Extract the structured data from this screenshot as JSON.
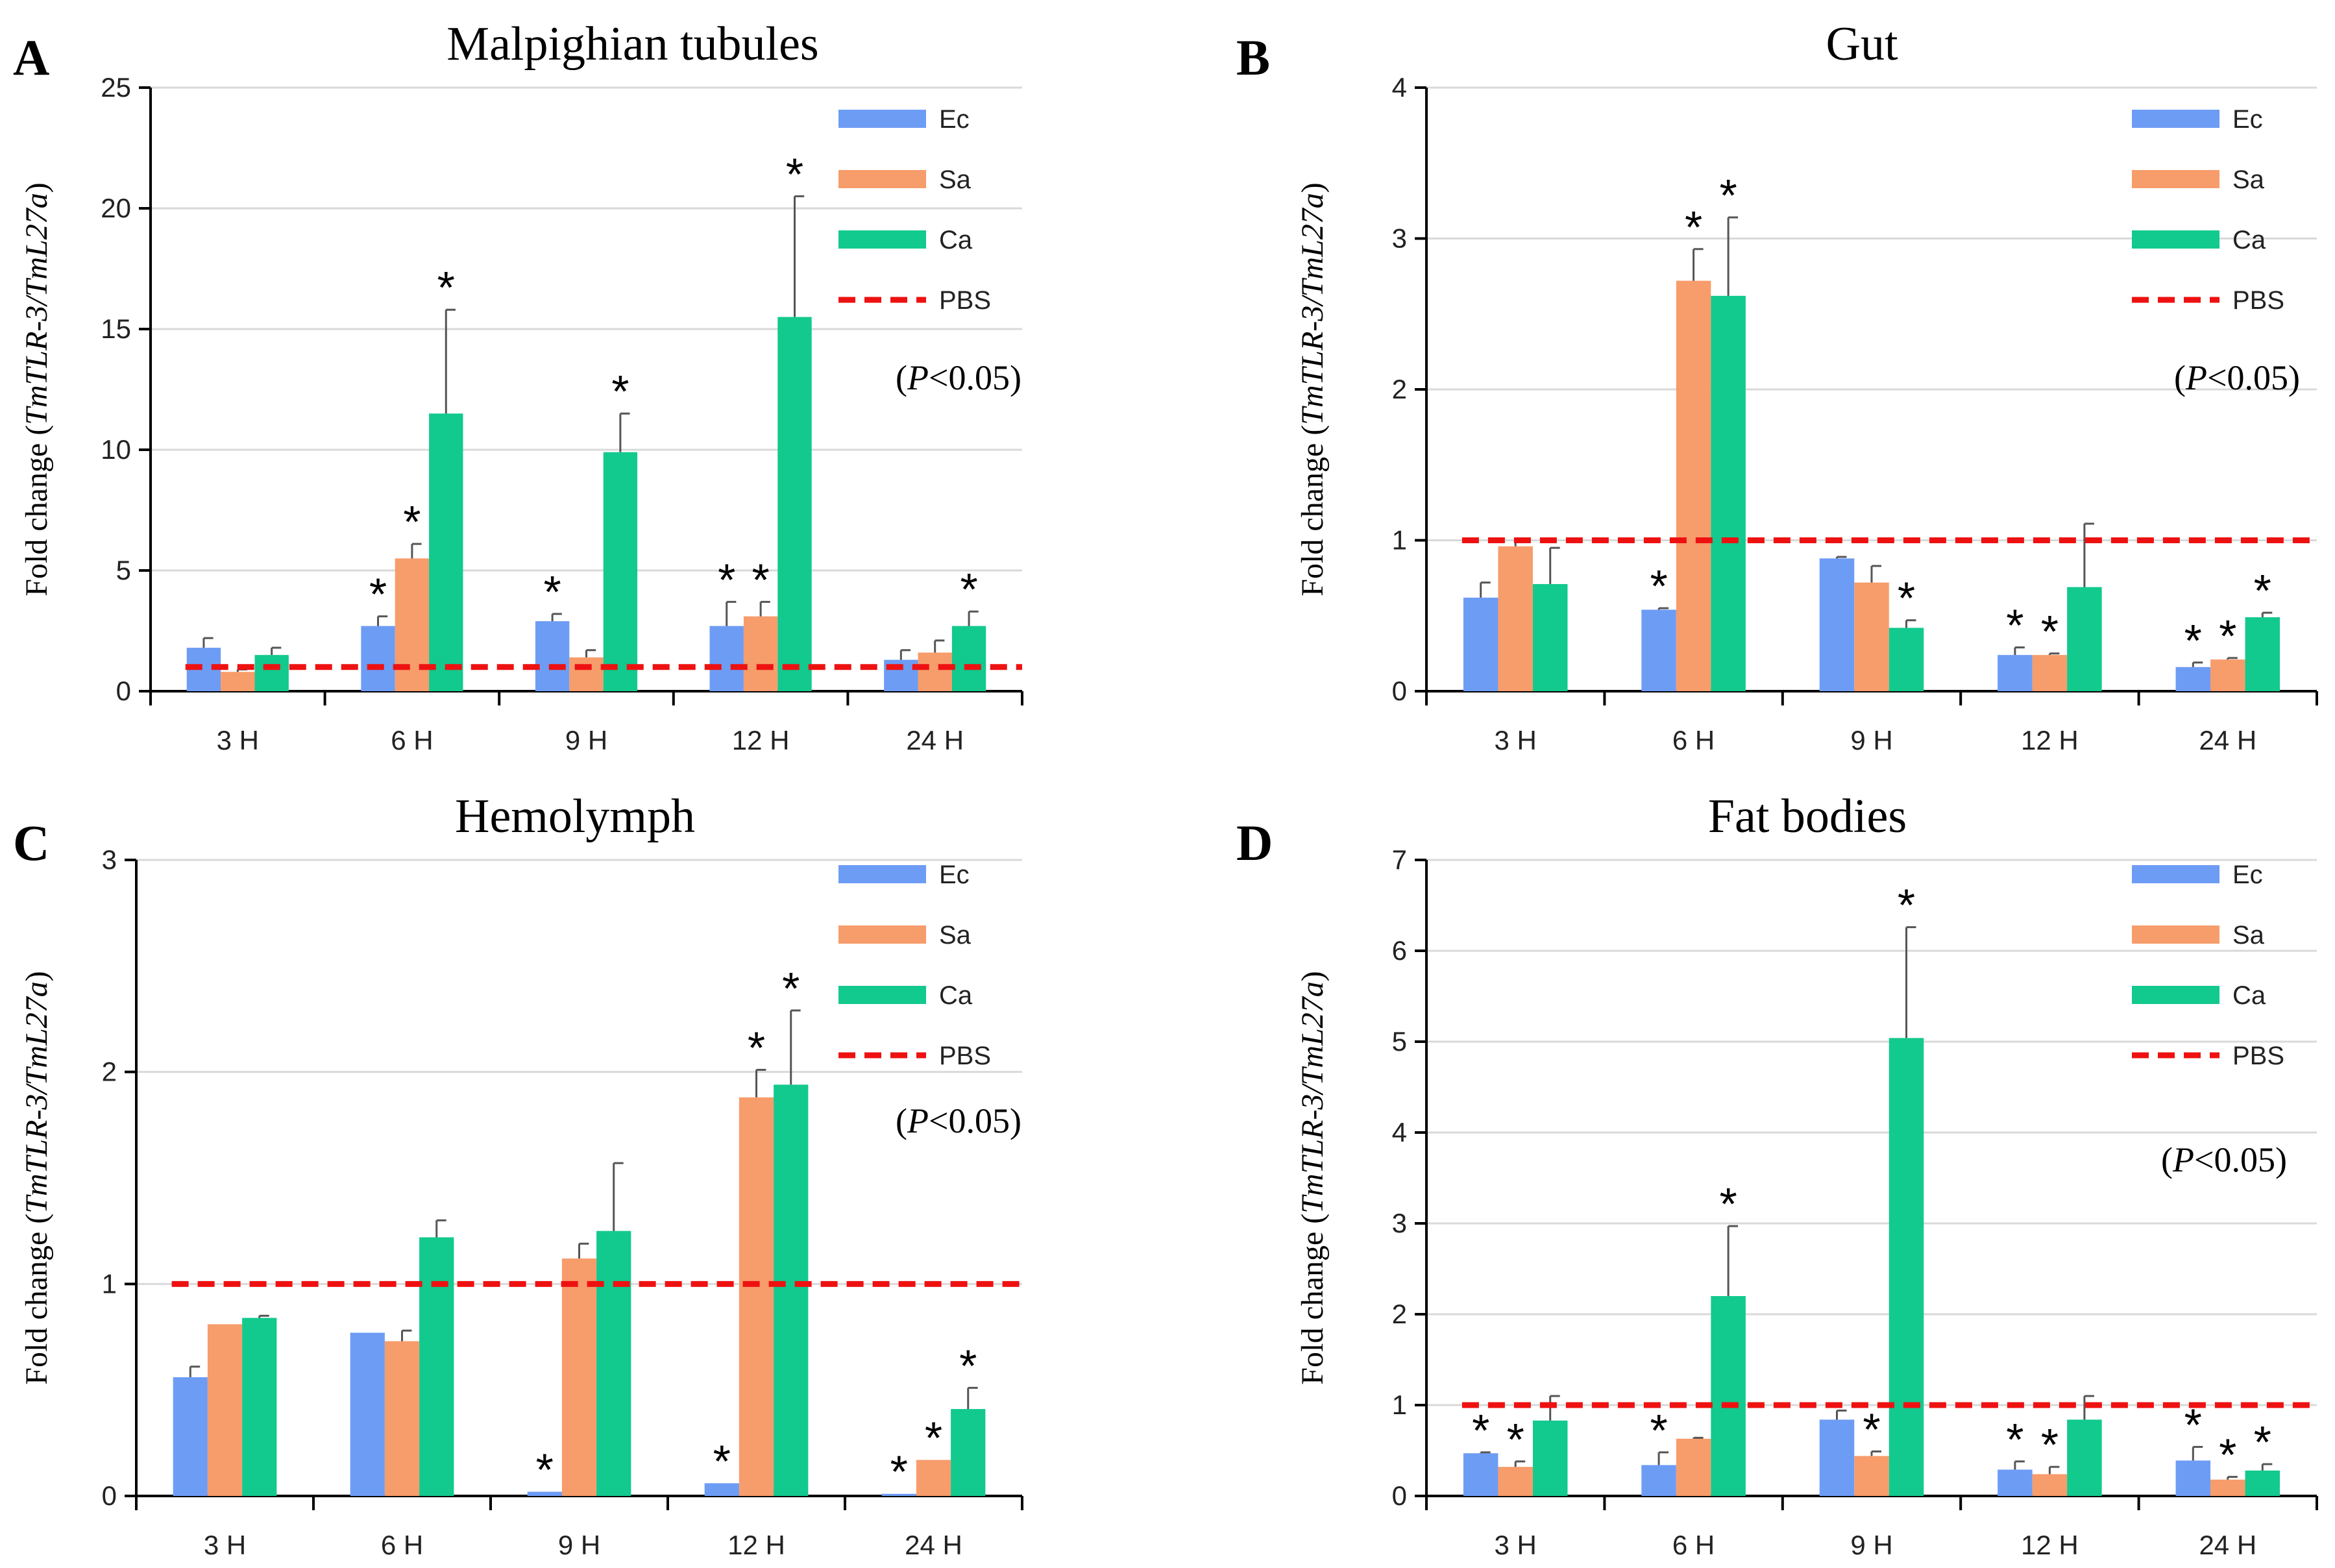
{
  "colors": {
    "Ec": "#6d9cf5",
    "Sa": "#f79c6b",
    "Ca": "#12c98e",
    "PBS": "#ee1111",
    "axis": "#000000",
    "grid": "#d9d9d9",
    "error": "#555555"
  },
  "chart_data": [
    {
      "type": "bar",
      "panel_label": "A",
      "title": "Malpighian tubules",
      "ylabel_prefix": "Fold change (",
      "ylabel_gene": "TmTLR-3/TmL27a",
      "ylabel_suffix": ")",
      "ylim": [
        0,
        25
      ],
      "yticks": [
        0,
        5,
        10,
        15,
        20,
        25
      ],
      "categories": [
        "3 H",
        "6 H",
        "9 H",
        "12 H",
        "24 H"
      ],
      "series": [
        {
          "name": "Ec",
          "values": [
            1.8,
            2.7,
            2.9,
            2.7,
            1.3
          ],
          "errors": [
            0.4,
            0.4,
            0.3,
            1.0,
            0.4
          ],
          "sig": [
            false,
            true,
            true,
            true,
            false
          ]
        },
        {
          "name": "Sa",
          "values": [
            0.8,
            5.5,
            1.4,
            3.1,
            1.6
          ],
          "errors": [
            0.1,
            0.6,
            0.3,
            0.6,
            0.5
          ],
          "sig": [
            false,
            true,
            false,
            true,
            false
          ]
        },
        {
          "name": "Ca",
          "values": [
            1.5,
            11.5,
            9.9,
            15.5,
            2.7
          ],
          "errors": [
            0.3,
            4.3,
            1.6,
            5.0,
            0.6
          ],
          "sig": [
            false,
            true,
            true,
            true,
            true
          ]
        }
      ],
      "reference": {
        "name": "PBS",
        "value": 1
      },
      "significance_marker": "*",
      "annotation": {
        "P": "P",
        "text": "<0.05"
      }
    },
    {
      "type": "bar",
      "panel_label": "B",
      "title": "Gut",
      "ylabel_prefix": "Fold change (",
      "ylabel_gene": "TmTLR-3/TmL27a",
      "ylabel_suffix": ")",
      "ylim": [
        0,
        4
      ],
      "yticks": [
        0,
        1,
        2,
        3,
        4
      ],
      "categories": [
        "3 H",
        "6 H",
        "9 H",
        "12 H",
        "24 H"
      ],
      "series": [
        {
          "name": "Ec",
          "values": [
            0.62,
            0.54,
            0.88,
            0.24,
            0.16
          ],
          "errors": [
            0.1,
            0.01,
            0.01,
            0.05,
            0.03
          ],
          "sig": [
            false,
            true,
            false,
            true,
            true
          ]
        },
        {
          "name": "Sa",
          "values": [
            0.96,
            2.72,
            0.72,
            0.24,
            0.21
          ],
          "errors": [
            0.04,
            0.21,
            0.11,
            0.01,
            0.01
          ],
          "sig": [
            false,
            true,
            false,
            true,
            true
          ]
        },
        {
          "name": "Ca",
          "values": [
            0.71,
            2.62,
            0.42,
            0.69,
            0.49
          ],
          "errors": [
            0.24,
            0.52,
            0.05,
            0.42,
            0.03
          ],
          "sig": [
            false,
            true,
            true,
            false,
            true
          ]
        }
      ],
      "reference": {
        "name": "PBS",
        "value": 1
      },
      "significance_marker": "*",
      "annotation": {
        "P": "P",
        "text": "<0.05"
      }
    },
    {
      "type": "bar",
      "panel_label": "C",
      "title": "Hemolymph",
      "ylabel_prefix": "Fold change (",
      "ylabel_gene": "TmTLR-3/TmL27a",
      "ylabel_suffix": ")",
      "ylim": [
        0,
        3
      ],
      "yticks": [
        0,
        1,
        2,
        3
      ],
      "categories": [
        "3 H",
        "6 H",
        "9 H",
        "12 H",
        "24 H"
      ],
      "series": [
        {
          "name": "Ec",
          "values": [
            0.56,
            0.77,
            0.02,
            0.06,
            0.01
          ],
          "errors": [
            0.05,
            0.0,
            0.0,
            0.0,
            0.0
          ],
          "sig": [
            false,
            false,
            true,
            true,
            true
          ]
        },
        {
          "name": "Sa",
          "values": [
            0.81,
            0.73,
            1.12,
            1.88,
            0.17
          ],
          "errors": [
            0.0,
            0.05,
            0.07,
            0.13,
            0.0
          ],
          "sig": [
            false,
            false,
            false,
            true,
            true
          ]
        },
        {
          "name": "Ca",
          "values": [
            0.84,
            1.22,
            1.25,
            1.94,
            0.41
          ],
          "errors": [
            0.01,
            0.08,
            0.32,
            0.35,
            0.1
          ],
          "sig": [
            false,
            false,
            false,
            true,
            true
          ]
        }
      ],
      "reference": {
        "name": "PBS",
        "value": 1
      },
      "significance_marker": "*",
      "annotation": {
        "P": "P",
        "text": "<0.05"
      }
    },
    {
      "type": "bar",
      "panel_label": "D",
      "title": "Fat bodies",
      "ylabel_prefix": "Fold change (",
      "ylabel_gene": "TmTLR-3/TmL27a",
      "ylabel_suffix": ")",
      "ylim": [
        0,
        7
      ],
      "yticks": [
        0,
        1,
        2,
        3,
        4,
        5,
        6,
        7
      ],
      "categories": [
        "3 H",
        "6 H",
        "9 H",
        "12 H",
        "24 H"
      ],
      "series": [
        {
          "name": "Ec",
          "values": [
            0.47,
            0.34,
            0.84,
            0.29,
            0.39
          ],
          "errors": [
            0.01,
            0.14,
            0.1,
            0.09,
            0.15
          ],
          "sig": [
            true,
            true,
            false,
            true,
            true
          ]
        },
        {
          "name": "Sa",
          "values": [
            0.32,
            0.63,
            0.44,
            0.24,
            0.18
          ],
          "errors": [
            0.06,
            0.01,
            0.05,
            0.08,
            0.03
          ],
          "sig": [
            true,
            false,
            true,
            true,
            true
          ]
        },
        {
          "name": "Ca",
          "values": [
            0.83,
            2.2,
            5.04,
            0.84,
            0.28
          ],
          "errors": [
            0.27,
            0.77,
            1.22,
            0.26,
            0.07
          ],
          "sig": [
            false,
            true,
            true,
            false,
            true
          ]
        }
      ],
      "reference": {
        "name": "PBS",
        "value": 1
      },
      "significance_marker": "*",
      "annotation": {
        "P": "P",
        "text": "<0.05"
      }
    }
  ]
}
